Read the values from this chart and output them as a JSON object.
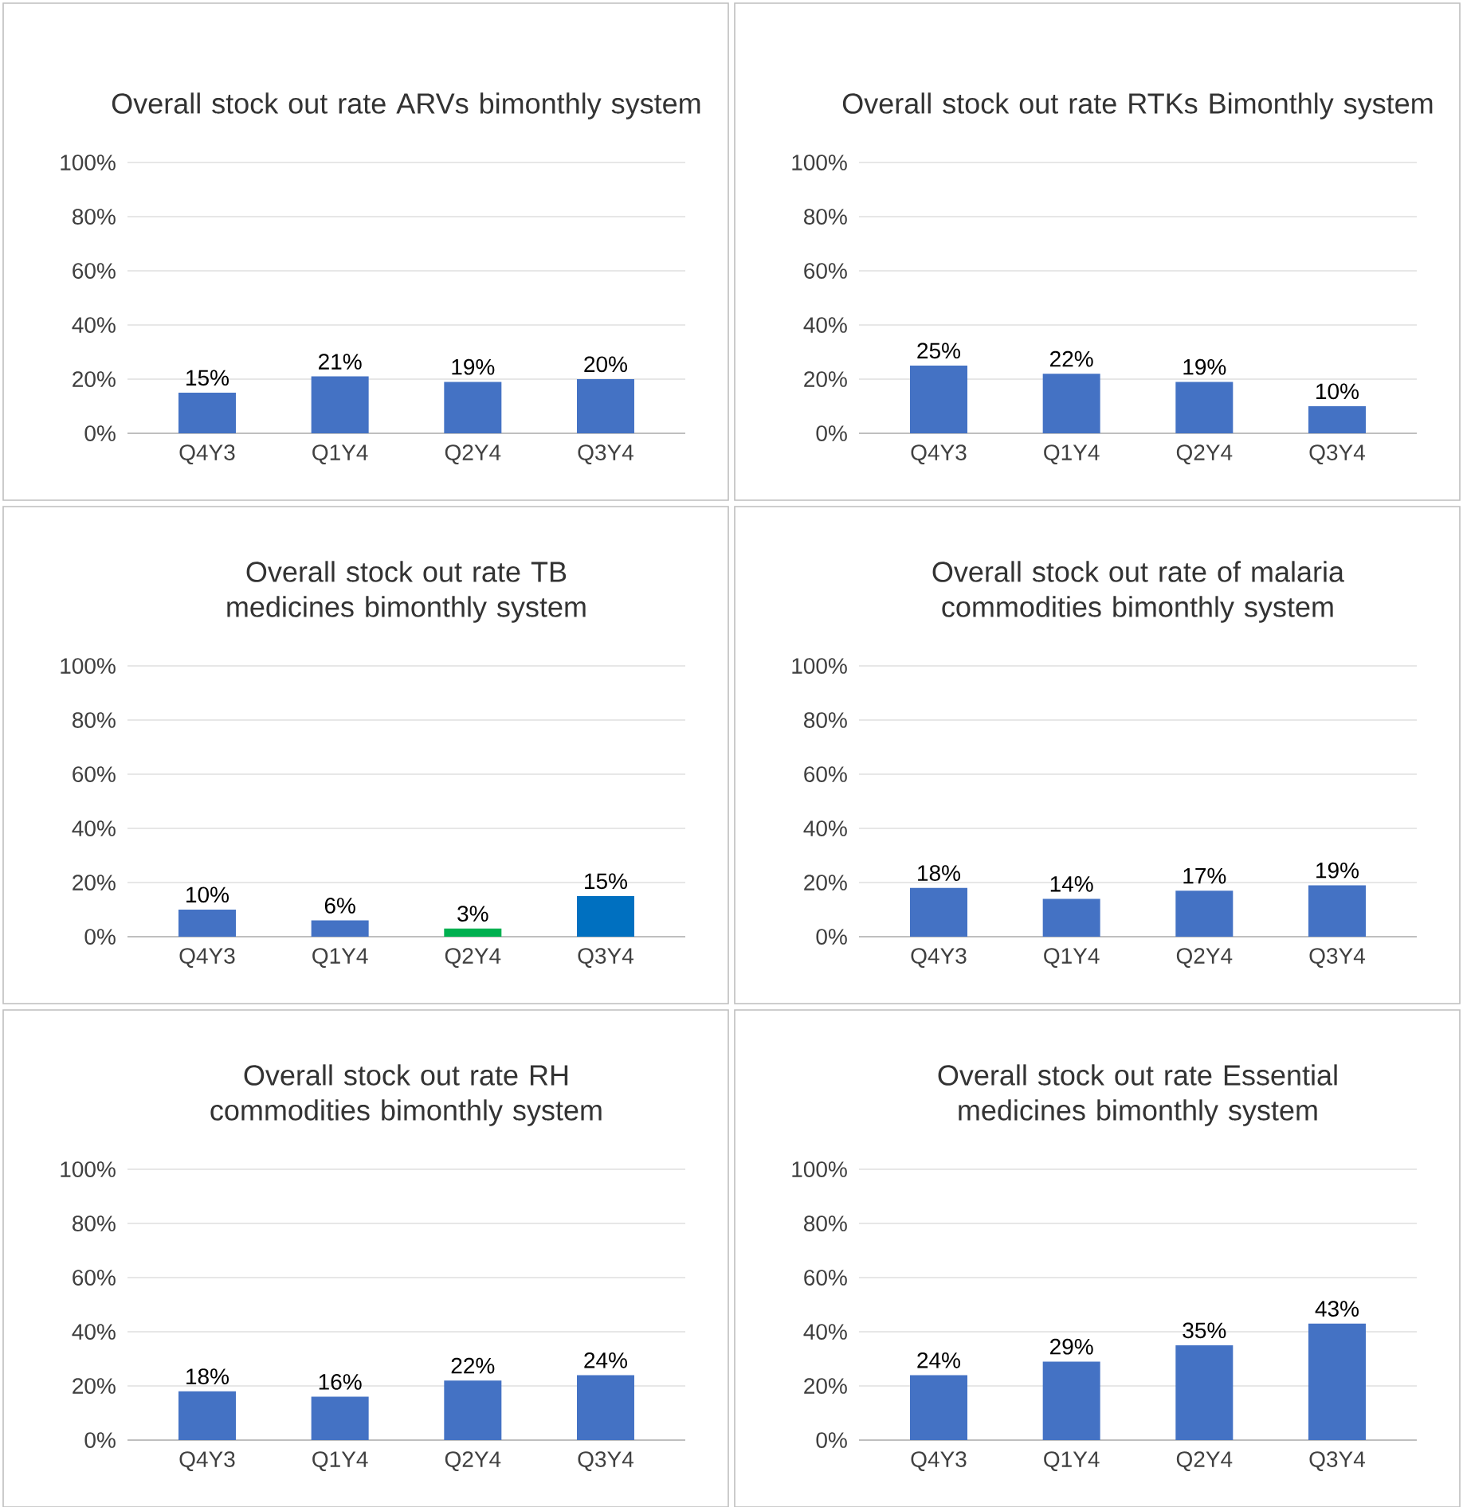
{
  "chart_data": [
    {
      "type": "bar",
      "title": "Overall stock out rate ARVs bimonthly system",
      "categories": [
        "Q4Y3",
        "Q1Y4",
        "Q2Y4",
        "Q3Y4"
      ],
      "values": [
        15,
        21,
        19,
        20
      ],
      "value_labels": [
        "15%",
        "21%",
        "19%",
        "20%"
      ],
      "color": "#4472c4",
      "ylim": [
        0,
        100
      ],
      "yticks": [
        {
          "value": 0,
          "label": "0%"
        },
        {
          "value": 20,
          "label": "20%"
        },
        {
          "value": 40,
          "label": "40%"
        },
        {
          "value": 60,
          "label": "60%"
        },
        {
          "value": 80,
          "label": "80%"
        },
        {
          "value": 100,
          "label": "100%"
        }
      ],
      "grid": "y"
    },
    {
      "type": "bar",
      "title": "Overall stock out rate RTKs Bimonthly system",
      "categories": [
        "Q4Y3",
        "Q1Y4",
        "Q2Y4",
        "Q3Y4"
      ],
      "values": [
        25,
        22,
        19,
        10
      ],
      "value_labels": [
        "25%",
        "22%",
        "19%",
        "10%"
      ],
      "color": "#4472c4",
      "ylim": [
        0,
        100
      ],
      "yticks": [
        {
          "value": 0,
          "label": "0%"
        },
        {
          "value": 20,
          "label": "20%"
        },
        {
          "value": 40,
          "label": "40%"
        },
        {
          "value": 60,
          "label": "60%"
        },
        {
          "value": 80,
          "label": "80%"
        },
        {
          "value": 100,
          "label": "100%"
        }
      ],
      "grid": "y"
    },
    {
      "type": "bar",
      "title": "Overall stock out rate TB medicines bimonthly system",
      "categories": [
        "Q4Y3",
        "Q1Y4",
        "Q2Y4",
        "Q3Y4"
      ],
      "values": [
        10,
        6,
        3,
        15
      ],
      "value_labels": [
        "10%",
        "6%",
        "3%",
        "15%"
      ],
      "colors": [
        "#4472c4",
        "#4472c4",
        "#00b050",
        "#0070c0"
      ],
      "ylim": [
        0,
        100
      ],
      "yticks": [
        {
          "value": 0,
          "label": "0%"
        },
        {
          "value": 20,
          "label": "20%"
        },
        {
          "value": 40,
          "label": "40%"
        },
        {
          "value": 60,
          "label": "60%"
        },
        {
          "value": 80,
          "label": "80%"
        },
        {
          "value": 100,
          "label": "100%"
        }
      ],
      "grid": "y"
    },
    {
      "type": "bar",
      "title": "Overall stock out rate of malaria commodities bimonthly system",
      "categories": [
        "Q4Y3",
        "Q1Y4",
        "Q2Y4",
        "Q3Y4"
      ],
      "values": [
        18,
        14,
        17,
        19
      ],
      "value_labels": [
        "18%",
        "14%",
        "17%",
        "19%"
      ],
      "color": "#4472c4",
      "ylim": [
        0,
        100
      ],
      "yticks": [
        {
          "value": 0,
          "label": "0%"
        },
        {
          "value": 20,
          "label": "20%"
        },
        {
          "value": 40,
          "label": "40%"
        },
        {
          "value": 60,
          "label": "60%"
        },
        {
          "value": 80,
          "label": "80%"
        },
        {
          "value": 100,
          "label": "100%"
        }
      ],
      "grid": "y"
    },
    {
      "type": "bar",
      "title": "Overall stock out rate RH commodities bimonthly system",
      "categories": [
        "Q4Y3",
        "Q1Y4",
        "Q2Y4",
        "Q3Y4"
      ],
      "values": [
        18,
        16,
        22,
        24
      ],
      "value_labels": [
        "18%",
        "16%",
        "22%",
        "24%"
      ],
      "color": "#4472c4",
      "ylim": [
        0,
        100
      ],
      "yticks": [
        {
          "value": 0,
          "label": "0%"
        },
        {
          "value": 20,
          "label": "20%"
        },
        {
          "value": 40,
          "label": "40%"
        },
        {
          "value": 60,
          "label": "60%"
        },
        {
          "value": 80,
          "label": "80%"
        },
        {
          "value": 100,
          "label": "100%"
        }
      ],
      "grid": "y"
    },
    {
      "type": "bar",
      "title": "Overall stock out rate Essential medicines bimonthly system",
      "categories": [
        "Q4Y3",
        "Q1Y4",
        "Q2Y4",
        "Q3Y4"
      ],
      "values": [
        24,
        29,
        35,
        43
      ],
      "value_labels": [
        "24%",
        "29%",
        "35%",
        "43%"
      ],
      "color": "#4472c4",
      "ylim": [
        0,
        100
      ],
      "yticks": [
        {
          "value": 0,
          "label": "0%"
        },
        {
          "value": 20,
          "label": "20%"
        },
        {
          "value": 40,
          "label": "40%"
        },
        {
          "value": 60,
          "label": "60%"
        },
        {
          "value": 80,
          "label": "80%"
        },
        {
          "value": 100,
          "label": "100%"
        }
      ],
      "grid": "y"
    }
  ]
}
